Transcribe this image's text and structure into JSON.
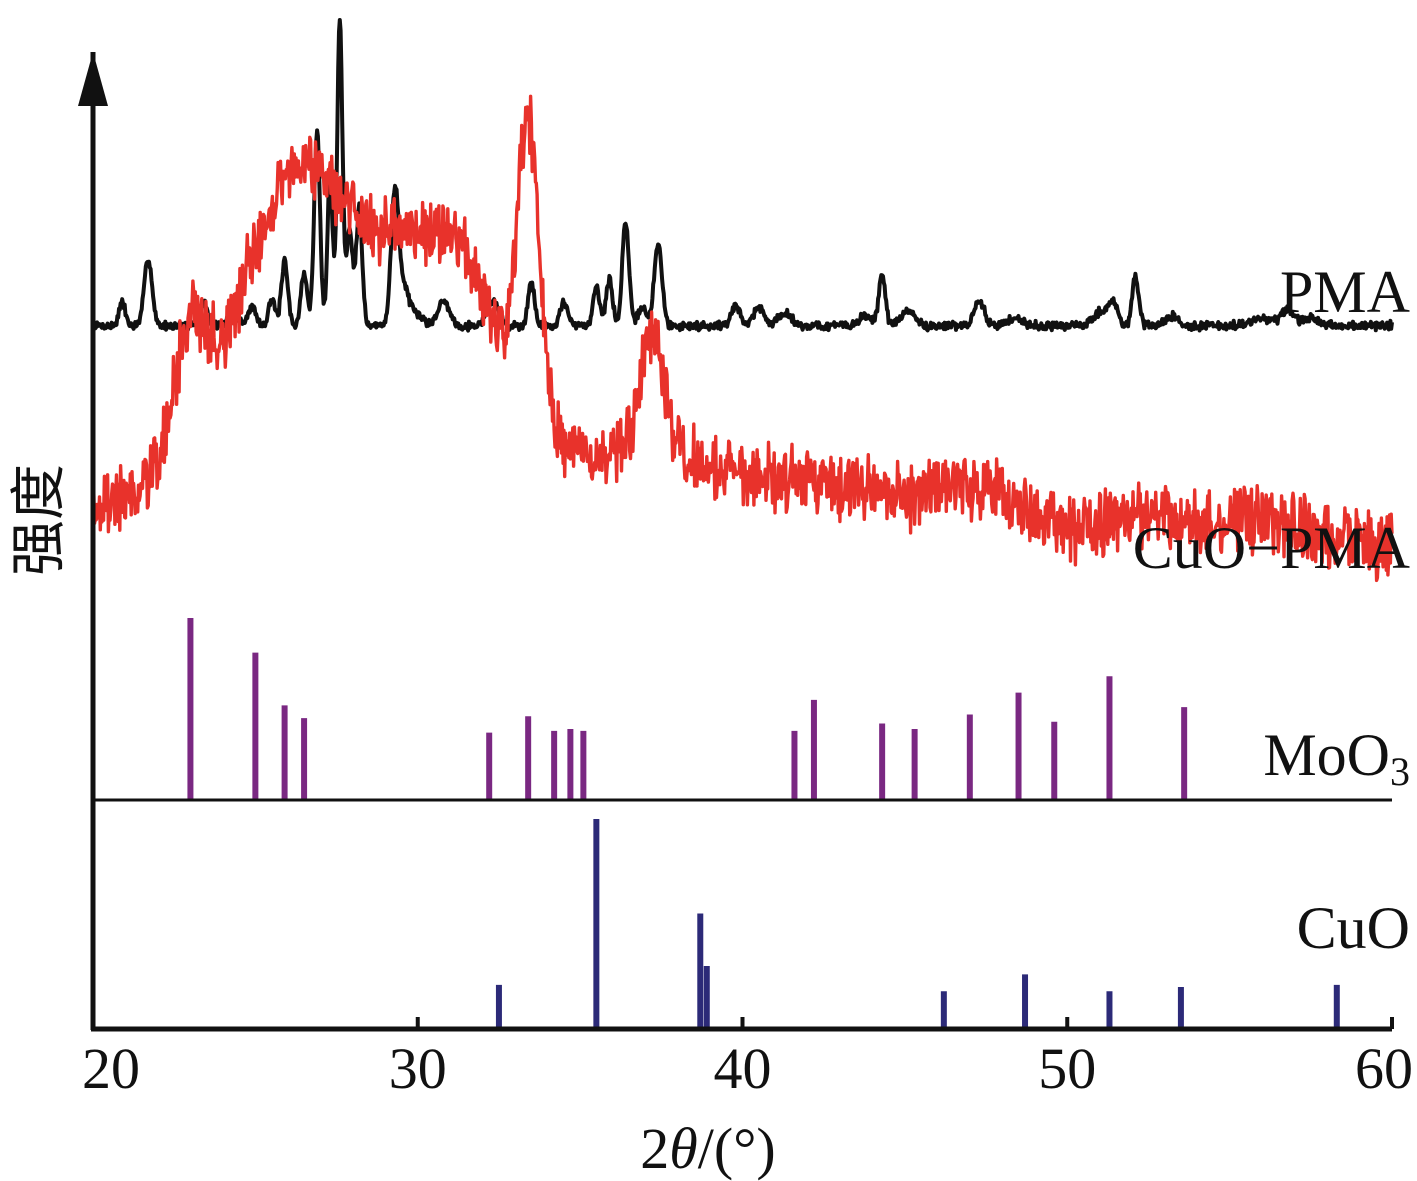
{
  "chart_data": {
    "type": "line",
    "title": "",
    "xlabel_prefix": "2",
    "xlabel_theta": "θ",
    "xlabel_suffix": "/(°)",
    "ylabel": "强度",
    "xlim": [
      20,
      60
    ],
    "xticks": [
      20,
      30,
      40,
      50,
      60
    ],
    "grid": false,
    "axis_color": "#111111",
    "series": [
      {
        "name": "PMA",
        "label_main": "PMA",
        "label_sub": "",
        "kind": "profile",
        "color": "#111111",
        "baseline": 0.1,
        "noise": 0.018,
        "seed": 7,
        "peaks": [
          [
            20.9,
            0.12,
            0.1
          ],
          [
            21.7,
            0.35,
            0.12
          ],
          [
            23.4,
            0.12,
            0.12
          ],
          [
            24.3,
            0.07,
            0.15
          ],
          [
            24.9,
            0.1,
            0.12
          ],
          [
            25.5,
            0.14,
            0.1
          ],
          [
            25.9,
            0.33,
            0.1
          ],
          [
            26.5,
            0.27,
            0.1
          ],
          [
            26.9,
            1.02,
            0.09
          ],
          [
            27.3,
            0.78,
            0.08
          ],
          [
            27.6,
            1.6,
            0.08
          ],
          [
            27.9,
            0.5,
            0.1
          ],
          [
            28.2,
            0.62,
            0.09
          ],
          [
            29.3,
            0.7,
            0.12
          ],
          [
            29.6,
            0.18,
            0.15
          ],
          [
            30.0,
            0.05,
            0.2
          ],
          [
            30.8,
            0.13,
            0.18
          ],
          [
            32.3,
            0.13,
            0.18
          ],
          [
            33.5,
            0.23,
            0.1
          ],
          [
            34.5,
            0.12,
            0.12
          ],
          [
            35.5,
            0.21,
            0.1
          ],
          [
            35.9,
            0.24,
            0.1
          ],
          [
            36.4,
            0.55,
            0.1
          ],
          [
            36.9,
            0.1,
            0.12
          ],
          [
            37.4,
            0.43,
            0.12
          ],
          [
            39.8,
            0.1,
            0.15
          ],
          [
            40.5,
            0.1,
            0.15
          ],
          [
            41.3,
            0.07,
            0.2
          ],
          [
            43.8,
            0.05,
            0.2
          ],
          [
            44.3,
            0.27,
            0.1
          ],
          [
            45.1,
            0.08,
            0.2
          ],
          [
            47.3,
            0.13,
            0.15
          ],
          [
            48.4,
            0.04,
            0.25
          ],
          [
            51.0,
            0.07,
            0.2
          ],
          [
            51.4,
            0.12,
            0.15
          ],
          [
            52.1,
            0.26,
            0.1
          ],
          [
            53.2,
            0.05,
            0.2
          ],
          [
            56.0,
            0.04,
            0.3
          ],
          [
            56.8,
            0.08,
            0.2
          ],
          [
            57.5,
            0.04,
            0.2
          ]
        ]
      },
      {
        "name": "CuO−PMA",
        "label_main": "CuO−PMA",
        "label_sub": "",
        "kind": "profile",
        "color": "#e8322b",
        "baseline": 0.26,
        "noise": 0.05,
        "seed": 19,
        "bumps": [
          [
            23.0,
            0.22,
            0.5
          ],
          [
            25.8,
            0.22,
            1.4
          ],
          [
            27.5,
            0.4,
            2.4
          ],
          [
            31.2,
            0.28,
            1.4
          ],
          [
            33.3,
            0.36,
            0.28
          ],
          [
            33.6,
            0.24,
            0.3
          ],
          [
            37.2,
            0.22,
            0.38
          ],
          [
            47.3,
            0.05,
            1.0
          ],
          [
            52.5,
            0.04,
            1.0
          ],
          [
            55.8,
            0.04,
            1.0
          ]
        ],
        "decline": [
          [
            20,
            0
          ],
          [
            26,
            0.08
          ],
          [
            36,
            0.1
          ],
          [
            42,
            0.06
          ],
          [
            50,
            -0.04
          ],
          [
            60,
            -0.06
          ]
        ]
      },
      {
        "name": "MoO3",
        "label_main": "MoO",
        "label_sub": "3",
        "kind": "sticks",
        "color": "#7a2882",
        "sticks": [
          [
            23.0,
            100
          ],
          [
            25.0,
            81
          ],
          [
            25.9,
            52
          ],
          [
            26.5,
            45
          ],
          [
            32.2,
            37
          ],
          [
            33.4,
            46
          ],
          [
            34.2,
            38
          ],
          [
            34.7,
            39
          ],
          [
            35.1,
            38
          ],
          [
            41.6,
            38
          ],
          [
            42.2,
            55
          ],
          [
            44.3,
            42
          ],
          [
            45.3,
            39
          ],
          [
            47.0,
            47
          ],
          [
            48.5,
            59
          ],
          [
            49.6,
            43
          ],
          [
            51.3,
            68
          ],
          [
            53.6,
            51
          ]
        ]
      },
      {
        "name": "CuO",
        "label_main": "CuO",
        "label_sub": "",
        "kind": "sticks",
        "color": "#2c2a78",
        "sticks": [
          [
            32.5,
            21
          ],
          [
            35.5,
            100
          ],
          [
            38.7,
            55
          ],
          [
            38.9,
            30
          ],
          [
            46.2,
            18
          ],
          [
            48.7,
            26
          ],
          [
            51.3,
            18
          ],
          [
            53.5,
            20
          ],
          [
            58.3,
            21
          ]
        ]
      }
    ]
  }
}
